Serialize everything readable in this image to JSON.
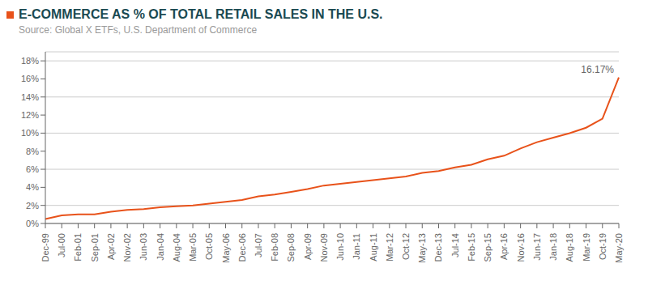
{
  "chart_data": {
    "type": "line",
    "title": "E-COMMERCE AS % OF TOTAL RETAIL SALES IN THE U.S.",
    "subtitle": "Source: Global X ETFs, U.S. Department of Commerce",
    "annotation": "16.17%",
    "categories": [
      "Dec-99",
      "Jul-00",
      "Feb-01",
      "Sep-01",
      "Apr-02",
      "Nov-02",
      "Jun-03",
      "Jan-04",
      "Aug-04",
      "Mar-05",
      "Oct-05",
      "May-06",
      "Dec-06",
      "Jul-07",
      "Feb-08",
      "Sep-08",
      "Apr-09",
      "Nov-09",
      "Jun-10",
      "Jan-11",
      "Aug-11",
      "Mar-12",
      "Oct-12",
      "May-13",
      "Dec-13",
      "Jul-14",
      "Feb-15",
      "Sep-15",
      "Apr-16",
      "Nov-16",
      "Jun-17",
      "Jan-18",
      "Aug-18",
      "Mar-19",
      "Oct-19",
      "May-20"
    ],
    "values": [
      0.005,
      0.009,
      0.01,
      0.01,
      0.013,
      0.015,
      0.016,
      0.018,
      0.019,
      0.02,
      0.022,
      0.024,
      0.026,
      0.03,
      0.032,
      0.035,
      0.038,
      0.042,
      0.044,
      0.046,
      0.048,
      0.05,
      0.052,
      0.056,
      0.058,
      0.062,
      0.065,
      0.071,
      0.075,
      0.083,
      0.09,
      0.095,
      0.1,
      0.106,
      0.116,
      0.1617
    ],
    "color": "#e8521a",
    "ylim": [
      0,
      0.19
    ],
    "yticks": [
      {
        "value": 0,
        "label": "0%"
      },
      {
        "value": 0.02,
        "label": "2%"
      },
      {
        "value": 0.04,
        "label": "4%"
      },
      {
        "value": 0.06,
        "label": "6%"
      },
      {
        "value": 0.08,
        "label": "8%"
      },
      {
        "value": 0.1,
        "label": "10%"
      },
      {
        "value": 0.12,
        "label": "12%"
      },
      {
        "value": 0.14,
        "label": "14%"
      },
      {
        "value": 0.16,
        "label": "16%"
      },
      {
        "value": 0.18,
        "label": "18%"
      }
    ],
    "grid": true
  }
}
